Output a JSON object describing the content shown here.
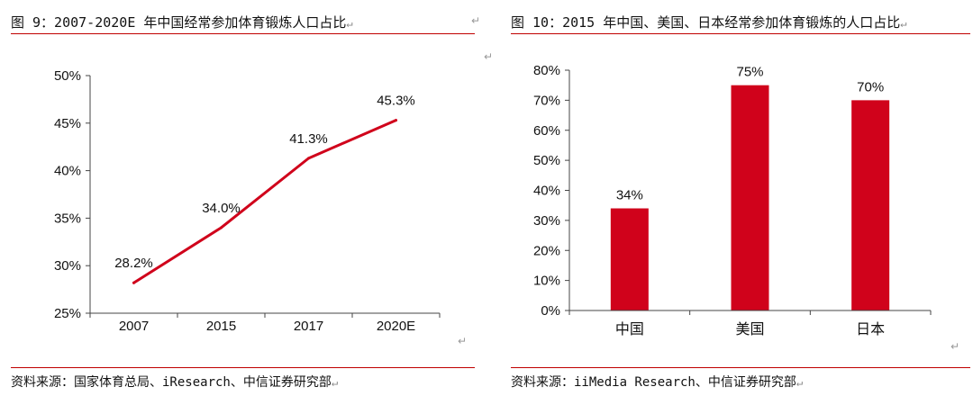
{
  "return_mark": "↵",
  "left": {
    "title": "图 9：2007-2020E 年中国经常参加体育锻炼人口占比",
    "source": "资料来源：国家体育总局、iResearch、中信证券研究部"
  },
  "right": {
    "title": "图 10：2015 年中国、美国、日本经常参加体育锻炼的人口占比",
    "source": "资料来源：iiMedia Research、中信证券研究部"
  },
  "colors": {
    "accent": "#d0021b",
    "rule": "#c00000",
    "axis": "#444444"
  },
  "chart_data": [
    {
      "type": "line",
      "title": "图 9：2007-2020E 年中国经常参加体育锻炼人口占比",
      "categories": [
        "2007",
        "2015",
        "2017",
        "2020E"
      ],
      "values": [
        28.2,
        34.0,
        41.3,
        45.3
      ],
      "data_labels": [
        "28.2%",
        "34.0%",
        "41.3%",
        "45.3%"
      ],
      "ylim": [
        25,
        50
      ],
      "yticks": [
        25,
        30,
        35,
        40,
        45,
        50
      ],
      "ytick_labels": [
        "25%",
        "30%",
        "35%",
        "40%",
        "45%",
        "50%"
      ],
      "xlabel": "",
      "ylabel": "",
      "grid": false
    },
    {
      "type": "bar",
      "title": "图 10：2015 年中国、美国、日本经常参加体育锻炼的人口占比",
      "categories": [
        "中国",
        "美国",
        "日本"
      ],
      "values": [
        34,
        75,
        70
      ],
      "data_labels": [
        "34%",
        "75%",
        "70%"
      ],
      "ylim": [
        0,
        80
      ],
      "yticks": [
        0,
        10,
        20,
        30,
        40,
        50,
        60,
        70,
        80
      ],
      "ytick_labels": [
        "0%",
        "10%",
        "20%",
        "30%",
        "40%",
        "50%",
        "60%",
        "70%",
        "80%"
      ],
      "xlabel": "",
      "ylabel": "",
      "grid": false
    }
  ]
}
